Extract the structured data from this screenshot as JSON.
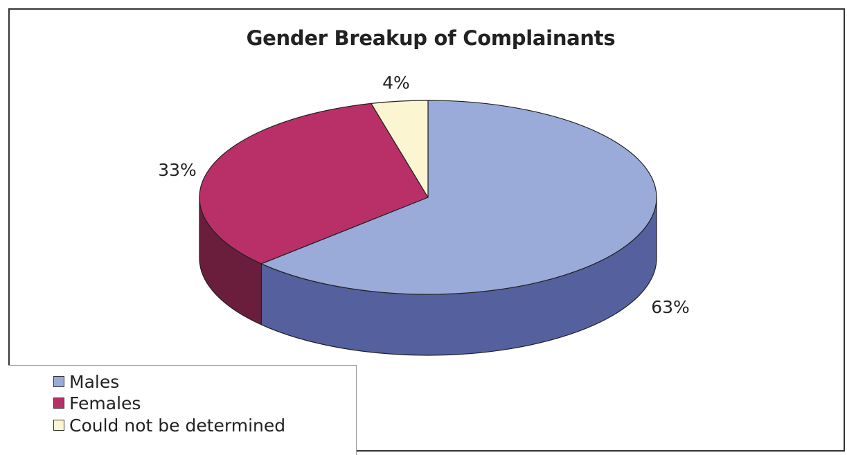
{
  "chart_data": {
    "type": "pie",
    "title": "Gender Breakup of Complainants",
    "slices": [
      {
        "label": "Males",
        "value": 63,
        "value_label": "63%",
        "color": "#9aaad9",
        "side_color": "#55609e"
      },
      {
        "label": "Females",
        "value": 33,
        "value_label": "33%",
        "color": "#b93068",
        "side_color": "#6a1e3c"
      },
      {
        "label": "Could not be determined",
        "value": 4,
        "value_label": "4%",
        "color": "#fbf5d2",
        "side_color": "#b8b28e"
      }
    ],
    "legend_position": "bottom-left",
    "three_d": true
  }
}
